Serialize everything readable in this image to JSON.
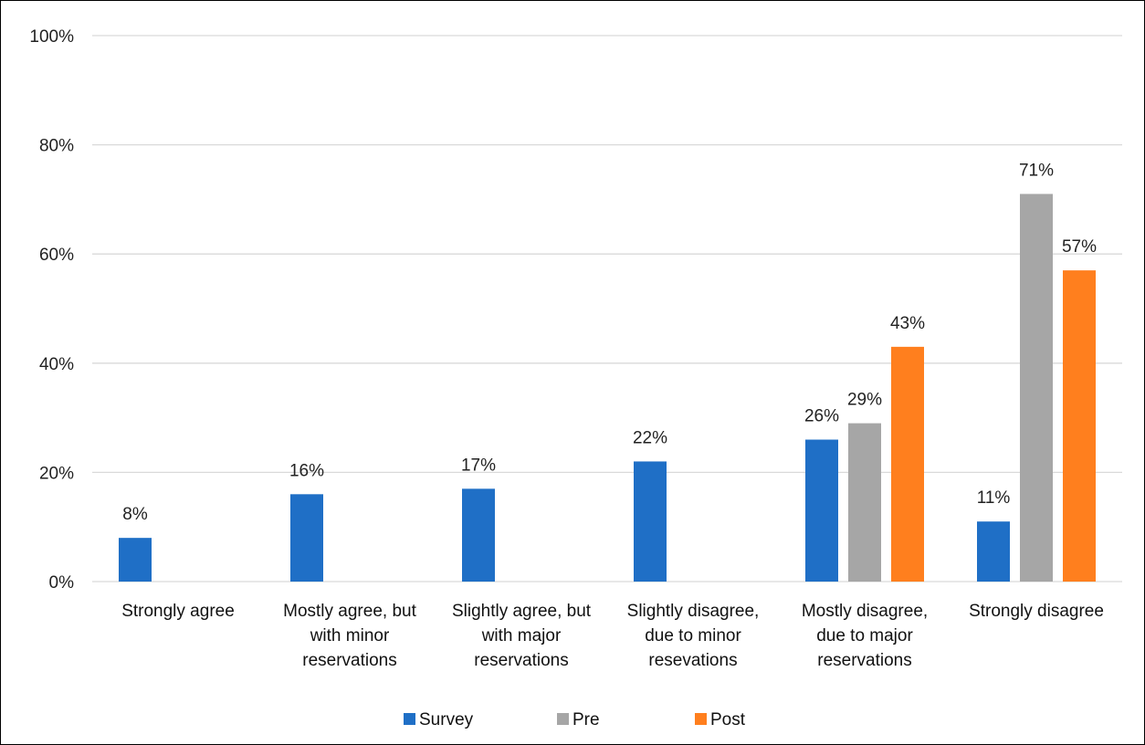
{
  "chart_data": {
    "type": "bar",
    "categories": [
      [
        "Strongly agree"
      ],
      [
        "Mostly agree, but",
        "with minor",
        "reservations"
      ],
      [
        "Slightly agree, but",
        "with major",
        "reservations"
      ],
      [
        "Slightly disagree,",
        "due to minor",
        "resevations"
      ],
      [
        "Mostly disagree,",
        "due to major",
        "reservations"
      ],
      [
        "Strongly disagree"
      ]
    ],
    "series": [
      {
        "name": "Survey",
        "color": "#1F6FC6",
        "values": [
          8,
          16,
          17,
          22,
          26,
          11
        ]
      },
      {
        "name": "Pre",
        "color": "#A6A6A6",
        "values": [
          null,
          null,
          null,
          null,
          29,
          71
        ]
      },
      {
        "name": "Post",
        "color": "#FF7F1E",
        "values": [
          null,
          null,
          null,
          null,
          43,
          57
        ]
      }
    ],
    "value_suffix": "%",
    "ylim": [
      0,
      100
    ],
    "yticks": [
      0,
      20,
      40,
      60,
      80,
      100
    ],
    "ytick_labels": [
      "0%",
      "20%",
      "40%",
      "60%",
      "80%",
      "100%"
    ],
    "grid": true,
    "grid_color": "#D9D9D9",
    "data_labels": true,
    "legend_position": "bottom-center",
    "title": "",
    "xlabel": "",
    "ylabel": ""
  }
}
